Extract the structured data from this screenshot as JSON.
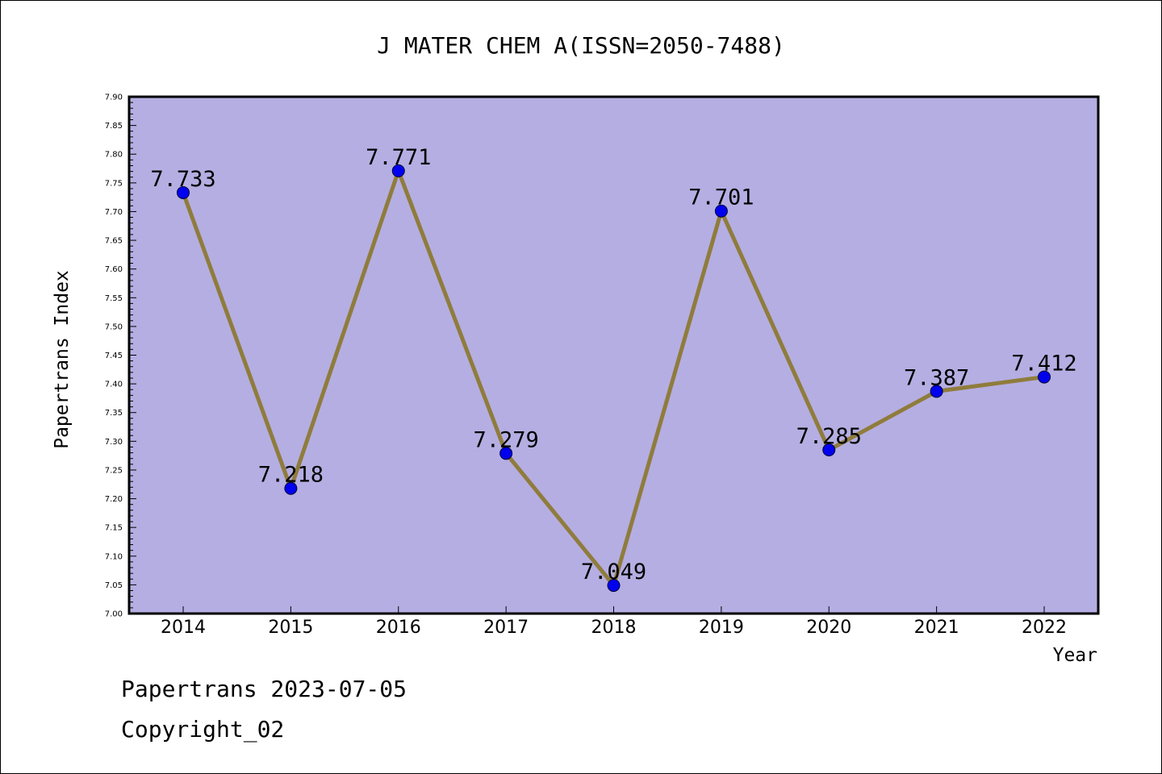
{
  "chart_data": {
    "type": "line",
    "title": "J MATER CHEM A(ISSN=2050-7488)",
    "xlabel": "Year",
    "ylabel": "Papertrans Index",
    "categories": [
      "2014",
      "2015",
      "2016",
      "2017",
      "2018",
      "2019",
      "2020",
      "2021",
      "2022"
    ],
    "values": [
      7.733,
      7.218,
      7.771,
      7.279,
      7.049,
      7.701,
      7.285,
      7.387,
      7.412
    ],
    "data_labels": [
      "7.733",
      "7.218",
      "7.771",
      "7.279",
      "7.049",
      "7.701",
      "7.285",
      "7.387",
      "7.412"
    ],
    "ylim": [
      7.0,
      7.9
    ],
    "yticks": [
      "7.00",
      "7.05",
      "7.10",
      "7.15",
      "7.20",
      "7.25",
      "7.30",
      "7.35",
      "7.40",
      "7.45",
      "7.50",
      "7.55",
      "7.60",
      "7.65",
      "7.70",
      "7.75",
      "7.80",
      "7.85",
      "7.90"
    ],
    "colors": {
      "plot_background": "#b5aee2",
      "line": "#8f7c3c",
      "marker": "#0000ee"
    },
    "grid": false,
    "legend": "none"
  },
  "footer": {
    "date_line": "Papertrans 2023-07-05",
    "copyright": "Copyright_02"
  }
}
